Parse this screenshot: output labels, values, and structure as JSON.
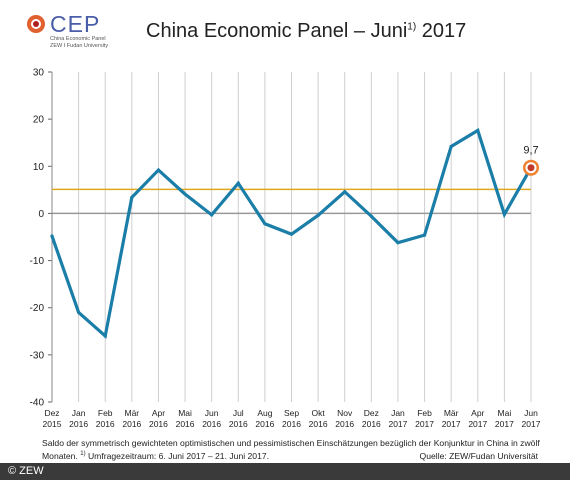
{
  "logo": {
    "text": "CEP",
    "sub1": "China Economic Panel",
    "sub2": "ZEW I Fudan University"
  },
  "header": {
    "title": "China Economic Panel – Juni",
    "title_sup": "1)",
    "title_year": "2017"
  },
  "caption": {
    "line1": "Saldo der symmetrisch gewichteten optimistischen und pessimistischen Einschätzungen bezüglich der Konjunktur in China in zwölf",
    "line2_a": "Monaten.",
    "line2_sup": "1)",
    "line2_b": "Umfragezeitraum: 6. Juni 2017 – 21. Juni 2017.",
    "source": "Quelle: ZEW/Fudan Universität"
  },
  "footer": {
    "copyright": "© ZEW"
  },
  "colors": {
    "series": "#1a7ea8",
    "reference_line": "#e0a820",
    "zero_line": "#999999",
    "grid": "#cfcfcf",
    "marker_fill": "#c0392b"
  },
  "chart_data": {
    "type": "line",
    "categories": [
      [
        "Dez",
        "2015"
      ],
      [
        "Jan",
        "2016"
      ],
      [
        "Feb",
        "2016"
      ],
      [
        "Mär",
        "2016"
      ],
      [
        "Apr",
        "2016"
      ],
      [
        "Mai",
        "2016"
      ],
      [
        "Jun",
        "2016"
      ],
      [
        "Jul",
        "2016"
      ],
      [
        "Aug",
        "2016"
      ],
      [
        "Sep",
        "2016"
      ],
      [
        "Okt",
        "2016"
      ],
      [
        "Nov",
        "2016"
      ],
      [
        "Dez",
        "2016"
      ],
      [
        "Jan",
        "2017"
      ],
      [
        "Feb",
        "2017"
      ],
      [
        "Mär",
        "2017"
      ],
      [
        "Apr",
        "2017"
      ],
      [
        "Mai",
        "2017"
      ],
      [
        "Jun",
        "2017"
      ]
    ],
    "values": [
      -4.8,
      -21,
      -26,
      3.4,
      9.2,
      4.1,
      -0.3,
      6.4,
      -2.2,
      -4.4,
      -0.4,
      4.6,
      -0.6,
      -6.2,
      -4.6,
      14.2,
      17.6,
      -0.2,
      9.7
    ],
    "reference_value": 5.1,
    "ylim": [
      -40,
      30
    ],
    "yticks": [
      30,
      20,
      10,
      0,
      -10,
      -20,
      -30,
      -40
    ],
    "highlight_label": "9,7",
    "grid": "vertical"
  }
}
